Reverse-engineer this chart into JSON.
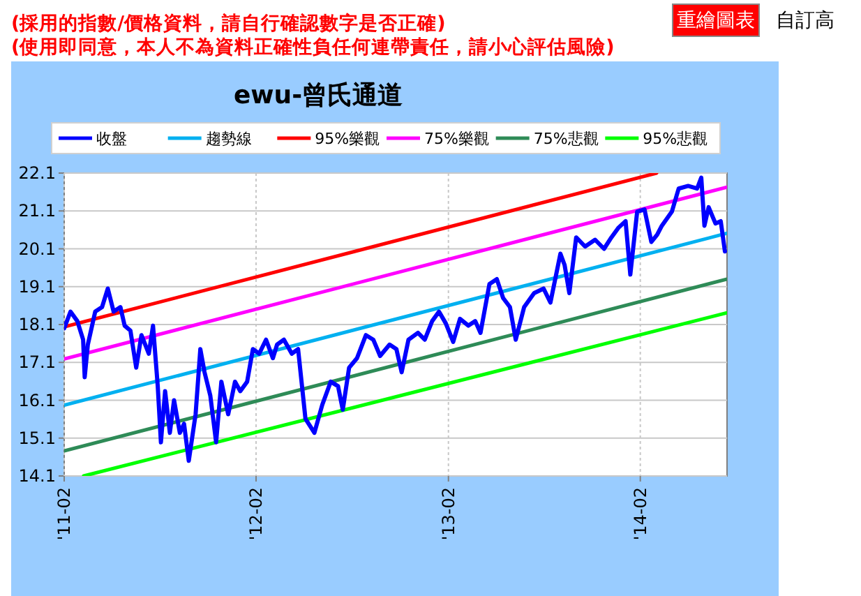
{
  "chart_data": {
    "type": "line",
    "title": "ewu-曾氏通道",
    "annotations": [
      "(採用的指數/價格資料，請自行確認數字是否正確)",
      "(使用即同意，本人不為資料正確性負任何連帶責任，請小心評估風險)",
      "重繪圖表",
      "自訂高"
    ],
    "xlim": [
      "2011-02-01",
      "2014-07-16"
    ],
    "xticks": [
      {
        "value": "2011-02-01",
        "label": "'11-02"
      },
      {
        "value": "2012-02-01",
        "label": "'12-02"
      },
      {
        "value": "2013-02-01",
        "label": "'13-02"
      },
      {
        "value": "2014-02-01",
        "label": "'14-02"
      }
    ],
    "ylim": [
      14.1,
      22.1
    ],
    "yticks": [
      14.1,
      15.1,
      16.1,
      17.1,
      18.1,
      19.1,
      20.1,
      21.1,
      22.1
    ],
    "grid": true,
    "legend": "top",
    "series": [
      {
        "name": "收盤",
        "color": "#0000ff",
        "x": [
          "2011-02-01",
          "2011-02-13",
          "2011-02-26",
          "2011-03-09",
          "2011-03-12",
          "2011-03-18",
          "2011-04-01",
          "2011-04-14",
          "2011-04-25",
          "2011-05-06",
          "2011-05-19",
          "2011-05-27",
          "2011-06-07",
          "2011-06-18",
          "2011-06-28",
          "2011-07-12",
          "2011-07-20",
          "2011-07-29",
          "2011-08-04",
          "2011-08-12",
          "2011-08-21",
          "2011-08-29",
          "2011-09-09",
          "2011-09-17",
          "2011-09-26",
          "2011-10-09",
          "2011-10-18",
          "2011-10-26",
          "2011-11-06",
          "2011-11-17",
          "2011-11-27",
          "2011-12-10",
          "2011-12-23",
          "2012-01-02",
          "2012-01-15",
          "2012-01-26",
          "2012-02-07",
          "2012-02-20",
          "2012-03-04",
          "2012-03-12",
          "2012-03-25",
          "2012-04-09",
          "2012-04-21",
          "2012-05-05",
          "2012-05-22",
          "2012-06-06",
          "2012-06-22",
          "2012-07-06",
          "2012-07-15",
          "2012-07-27",
          "2012-08-11",
          "2012-08-28",
          "2012-09-11",
          "2012-09-24",
          "2012-10-12",
          "2012-10-25",
          "2012-11-04",
          "2012-11-17",
          "2012-12-05",
          "2012-12-18",
          "2013-01-01",
          "2013-01-14",
          "2013-01-27",
          "2013-02-10",
          "2013-02-23",
          "2013-03-11",
          "2013-03-24",
          "2013-04-03",
          "2013-04-20",
          "2013-05-04",
          "2013-05-16",
          "2013-05-29",
          "2013-06-09",
          "2013-06-25",
          "2013-07-14",
          "2013-08-01",
          "2013-08-14",
          "2013-09-02",
          "2013-09-10",
          "2013-09-19",
          "2013-10-02",
          "2013-10-19",
          "2013-11-07",
          "2013-11-24",
          "2013-12-08",
          "2013-12-21",
          "2014-01-04",
          "2014-01-13",
          "2014-01-26",
          "2014-02-09",
          "2014-02-22",
          "2014-03-05",
          "2014-03-14",
          "2014-04-02",
          "2014-04-15",
          "2014-05-03",
          "2014-05-20",
          "2014-05-28",
          "2014-06-03",
          "2014-06-11",
          "2014-06-24",
          "2014-07-04",
          "2014-07-12"
        ],
        "values": [
          18.0,
          18.44,
          18.19,
          17.7,
          16.71,
          17.57,
          18.44,
          18.56,
          19.05,
          18.44,
          18.56,
          18.07,
          17.94,
          16.96,
          17.82,
          17.33,
          18.07,
          16.47,
          14.99,
          16.34,
          15.24,
          16.1,
          15.24,
          15.48,
          14.5,
          15.73,
          17.45,
          16.84,
          16.22,
          14.99,
          16.59,
          15.73,
          16.59,
          16.34,
          16.59,
          17.45,
          17.33,
          17.7,
          17.21,
          17.57,
          17.7,
          17.33,
          17.45,
          15.61,
          15.24,
          15.98,
          16.59,
          16.47,
          15.85,
          16.96,
          17.21,
          17.82,
          17.7,
          17.27,
          17.57,
          17.45,
          16.84,
          17.7,
          17.88,
          17.7,
          18.19,
          18.44,
          18.13,
          17.64,
          18.25,
          18.07,
          18.19,
          17.88,
          19.17,
          19.3,
          18.8,
          18.56,
          17.7,
          18.56,
          18.93,
          19.05,
          18.68,
          19.97,
          19.67,
          18.93,
          20.4,
          20.16,
          20.34,
          20.1,
          20.4,
          20.65,
          20.83,
          19.42,
          21.08,
          21.14,
          20.28,
          20.47,
          20.71,
          21.08,
          21.69,
          21.76,
          21.69,
          21.98,
          20.71,
          21.2,
          20.77,
          20.83,
          20.03
        ]
      },
      {
        "name": "趨勢線",
        "color": "#00b0f0",
        "x": [
          "2011-02-01",
          "2014-07-16"
        ],
        "values": [
          15.97,
          20.51
        ]
      },
      {
        "name": "95%樂觀",
        "color": "#ff0000",
        "x": [
          "2011-02-01",
          "2014-03-04"
        ],
        "values": [
          18.04,
          22.1
        ]
      },
      {
        "name": "75%樂觀",
        "color": "#ff00ff",
        "x": [
          "2011-02-01",
          "2014-07-16"
        ],
        "values": [
          17.19,
          21.73
        ]
      },
      {
        "name": "75%悲觀",
        "color": "#2e8b57",
        "x": [
          "2011-02-01",
          "2014-07-16"
        ],
        "values": [
          14.76,
          19.3
        ]
      },
      {
        "name": "95%悲觀",
        "color": "#00ff00",
        "x": [
          "2011-03-10",
          "2014-07-16"
        ],
        "values": [
          14.1,
          18.41
        ]
      }
    ]
  }
}
